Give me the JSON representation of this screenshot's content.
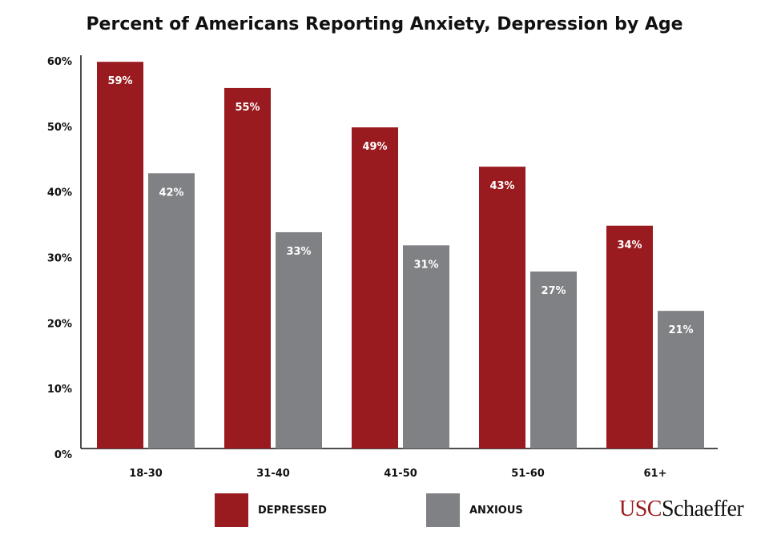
{
  "chart_data": {
    "type": "bar",
    "title": "Percent of Americans Reporting Anxiety, Depression by Age",
    "xlabel": "",
    "ylabel": "",
    "categories": [
      "18-30",
      "31-40",
      "41-50",
      "51-60",
      "61+"
    ],
    "series": [
      {
        "name": "DEPRESSED",
        "color": "#9a1b1f",
        "values": [
          59,
          55,
          49,
          43,
          34
        ],
        "labels": [
          "59%",
          "55%",
          "49%",
          "43%",
          "34%"
        ]
      },
      {
        "name": "ANXIOUS",
        "color": "#808184",
        "values": [
          42,
          33,
          31,
          27,
          21
        ],
        "labels": [
          "42%",
          "33%",
          "31%",
          "27%",
          "21%"
        ]
      }
    ],
    "ylim": [
      0,
      60
    ],
    "yticks": [
      0,
      10,
      20,
      30,
      40,
      50,
      60
    ],
    "ytick_labels": [
      "0%",
      "10%",
      "20%",
      "30%",
      "40%",
      "50%",
      "60%"
    ],
    "grid": false,
    "legend_position": "bottom"
  },
  "logo": {
    "part1": "USC",
    "part2": "Schaeffer"
  }
}
